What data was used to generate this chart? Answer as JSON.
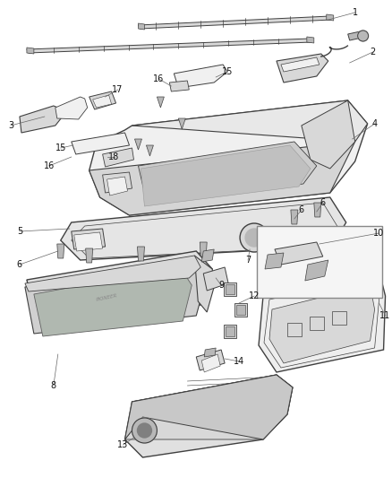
{
  "bg_color": "#ffffff",
  "fig_width": 4.38,
  "fig_height": 5.33,
  "dpi": 100,
  "line_color": "#404040",
  "fill_light": "#f0f0f0",
  "fill_mid": "#d8d8d8",
  "fill_dark": "#b8b8b8",
  "label_fontsize": 7.0,
  "label_color": "#111111",
  "leader_color": "#666666"
}
